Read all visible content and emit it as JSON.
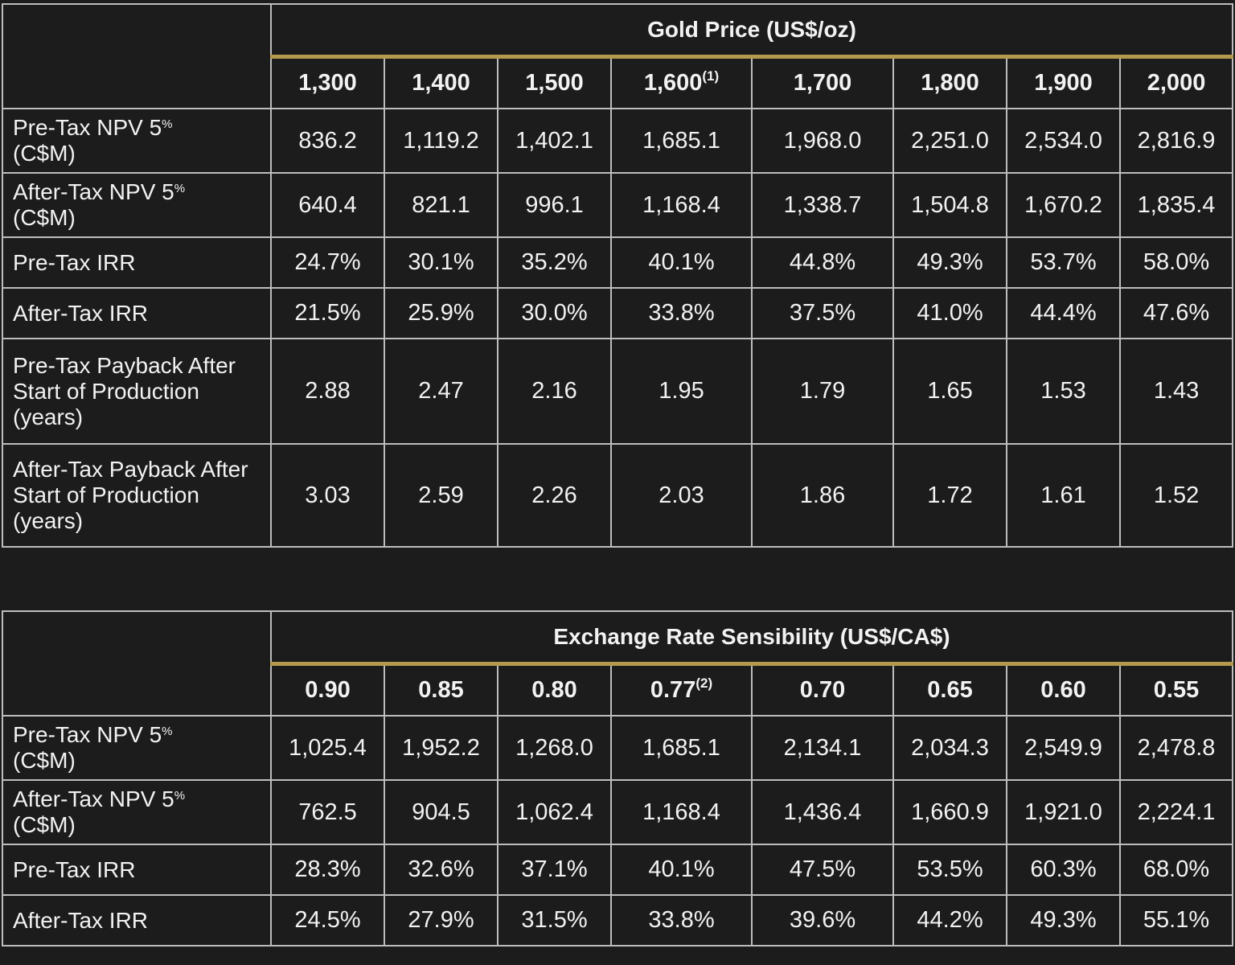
{
  "gold_table": {
    "title": "Gold Price (US$/oz)",
    "columns": [
      {
        "label": "1,300",
        "note": ""
      },
      {
        "label": "1,400",
        "note": ""
      },
      {
        "label": "1,500",
        "note": ""
      },
      {
        "label": "1,600",
        "note": "(1)"
      },
      {
        "label": "1,700",
        "note": ""
      },
      {
        "label": "1,800",
        "note": ""
      },
      {
        "label": "1,900",
        "note": ""
      },
      {
        "label": "2,000",
        "note": ""
      }
    ],
    "rows": [
      {
        "label": "Pre-Tax NPV 5",
        "sup": "%",
        "label_suffix": "(C$M)",
        "values": [
          "836.2",
          "1,119.2",
          "1,402.1",
          "1,685.1",
          "1,968.0",
          "2,251.0",
          "2,534.0",
          "2,816.9"
        ]
      },
      {
        "label": "After-Tax NPV 5",
        "sup": "%",
        "label_suffix": "(C$M)",
        "values": [
          "640.4",
          "821.1",
          "996.1",
          "1,168.4",
          "1,338.7",
          "1,504.8",
          "1,670.2",
          "1,835.4"
        ]
      },
      {
        "label": "Pre-Tax IRR",
        "sup": "",
        "label_suffix": "",
        "values": [
          "24.7%",
          "30.1%",
          "35.2%",
          "40.1%",
          "44.8%",
          "49.3%",
          "53.7%",
          "58.0%"
        ]
      },
      {
        "label": "After-Tax IRR",
        "sup": "",
        "label_suffix": "",
        "values": [
          "21.5%",
          "25.9%",
          "30.0%",
          "33.8%",
          "37.5%",
          "41.0%",
          "44.4%",
          "47.6%"
        ]
      },
      {
        "label": "Pre-Tax Payback After Start of Production (years)",
        "sup": "",
        "label_suffix": "",
        "values": [
          "2.88",
          "2.47",
          "2.16",
          "1.95",
          "1.79",
          "1.65",
          "1.53",
          "1.43"
        ]
      },
      {
        "label": "After-Tax Payback After Start of Production (years)",
        "sup": "",
        "label_suffix": "",
        "values": [
          "3.03",
          "2.59",
          "2.26",
          "2.03",
          "1.86",
          "1.72",
          "1.61",
          "1.52"
        ]
      }
    ]
  },
  "fx_table": {
    "title": "Exchange Rate Sensibility (US$/CA$)",
    "columns": [
      {
        "label": "0.90",
        "note": ""
      },
      {
        "label": "0.85",
        "note": ""
      },
      {
        "label": "0.80",
        "note": ""
      },
      {
        "label": "0.77",
        "note": "(2)"
      },
      {
        "label": "0.70",
        "note": ""
      },
      {
        "label": "0.65",
        "note": ""
      },
      {
        "label": "0.60",
        "note": ""
      },
      {
        "label": "0.55",
        "note": ""
      }
    ],
    "rows": [
      {
        "label": "Pre-Tax NPV 5",
        "sup": "%",
        "label_suffix": "(C$M)",
        "values": [
          "1,025.4",
          "1,952.2",
          "1,268.0",
          "1,685.1",
          "2,134.1",
          "2,034.3",
          "2,549.9",
          "2,478.8"
        ]
      },
      {
        "label": "After-Tax NPV 5",
        "sup": "%",
        "label_suffix": "(C$M)",
        "values": [
          "762.5",
          "904.5",
          "1,062.4",
          "1,168.4",
          "1,436.4",
          "1,660.9",
          "1,921.0",
          "2,224.1"
        ]
      },
      {
        "label": "Pre-Tax IRR",
        "sup": "",
        "label_suffix": "",
        "values": [
          "28.3%",
          "32.6%",
          "37.1%",
          "40.1%",
          "47.5%",
          "53.5%",
          "60.3%",
          "68.0%"
        ]
      },
      {
        "label": "After-Tax IRR",
        "sup": "",
        "label_suffix": "",
        "values": [
          "24.5%",
          "27.9%",
          "31.5%",
          "33.8%",
          "39.6%",
          "44.2%",
          "49.3%",
          "55.1%"
        ]
      }
    ]
  }
}
